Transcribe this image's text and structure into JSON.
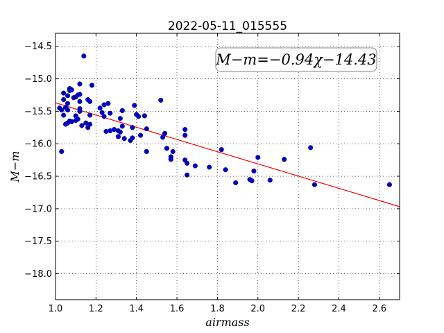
{
  "chart_data": {
    "type": "scatter",
    "title": "2022-05-11_015555",
    "xlabel": "airmass",
    "ylabel": "M−m",
    "xlim": [
      1.0,
      2.7
    ],
    "ylim": [
      -18.4,
      -14.3
    ],
    "x_ticks": [
      1.0,
      1.2,
      1.4,
      1.6,
      1.8,
      2.0,
      2.2,
      2.4,
      2.6
    ],
    "x_tick_labels": [
      "1.0",
      "1.2",
      "1.4",
      "1.6",
      "1.8",
      "2.0",
      "2.2",
      "2.4",
      "2.6"
    ],
    "y_ticks": [
      -14.5,
      -15.0,
      -15.5,
      -16.0,
      -16.5,
      -17.0,
      -17.5,
      -18.0
    ],
    "y_tick_labels": [
      "−14.5",
      "−15.0",
      "−15.5",
      "−16.0",
      "−16.5",
      "−17.0",
      "−17.5",
      "−18.0"
    ],
    "y_inverted": true,
    "grid": true,
    "annotation": "M−m=−0.94χ−14.43",
    "fit_line": {
      "slope": -0.94,
      "intercept": -14.43,
      "color": "#ff0000"
    },
    "marker_color": "#0000cc",
    "points": [
      [
        1.02,
        -15.45
      ],
      [
        1.03,
        -15.48
      ],
      [
        1.03,
        -16.12
      ],
      [
        1.04,
        -15.32
      ],
      [
        1.04,
        -15.22
      ],
      [
        1.04,
        -15.56
      ],
      [
        1.05,
        -15.44
      ],
      [
        1.05,
        -15.7
      ],
      [
        1.06,
        -15.38
      ],
      [
        1.06,
        -15.26
      ],
      [
        1.06,
        -15.48
      ],
      [
        1.06,
        -15.68
      ],
      [
        1.07,
        -15.15
      ],
      [
        1.07,
        -15.18
      ],
      [
        1.07,
        -15.65
      ],
      [
        1.08,
        -15.17
      ],
      [
        1.08,
        -15.66
      ],
      [
        1.09,
        -15.29
      ],
      [
        1.1,
        -15.28
      ],
      [
        1.1,
        -15.64
      ],
      [
        1.1,
        -15.57
      ],
      [
        1.11,
        -15.25
      ],
      [
        1.11,
        -15.62
      ],
      [
        1.12,
        -15.08
      ],
      [
        1.12,
        -15.24
      ],
      [
        1.12,
        -15.46
      ],
      [
        1.12,
        -15.5
      ],
      [
        1.12,
        -15.35
      ],
      [
        1.13,
        -15.72
      ],
      [
        1.14,
        -14.65
      ],
      [
        1.15,
        -15.68
      ],
      [
        1.16,
        -15.32
      ],
      [
        1.16,
        -15.75
      ],
      [
        1.17,
        -15.35
      ],
      [
        1.17,
        -15.7
      ],
      [
        1.17,
        -15.56
      ],
      [
        1.18,
        -15.1
      ],
      [
        1.22,
        -15.45
      ],
      [
        1.23,
        -15.52
      ],
      [
        1.24,
        -15.4
      ],
      [
        1.24,
        -15.58
      ],
      [
        1.25,
        -15.81
      ],
      [
        1.26,
        -15.38
      ],
      [
        1.27,
        -15.8
      ],
      [
        1.27,
        -15.53
      ],
      [
        1.29,
        -15.78
      ],
      [
        1.31,
        -15.8
      ],
      [
        1.31,
        -15.89
      ],
      [
        1.32,
        -15.82
      ],
      [
        1.32,
        -15.61
      ],
      [
        1.33,
        -15.49
      ],
      [
        1.33,
        -15.73
      ],
      [
        1.34,
        -15.92
      ],
      [
        1.37,
        -15.95
      ],
      [
        1.38,
        -15.75
      ],
      [
        1.38,
        -15.91
      ],
      [
        1.39,
        -15.41
      ],
      [
        1.4,
        -15.55
      ],
      [
        1.41,
        -15.58
      ],
      [
        1.42,
        -15.87
      ],
      [
        1.44,
        -15.57
      ],
      [
        1.45,
        -15.77
      ],
      [
        1.45,
        -16.12
      ],
      [
        1.52,
        -15.33
      ],
      [
        1.53,
        -15.9
      ],
      [
        1.54,
        -15.84
      ],
      [
        1.55,
        -16.07
      ],
      [
        1.57,
        -16.2
      ],
      [
        1.57,
        -16.24
      ],
      [
        1.58,
        -16.12
      ],
      [
        1.64,
        -15.78
      ],
      [
        1.64,
        -15.87
      ],
      [
        1.64,
        -16.25
      ],
      [
        1.65,
        -16.3
      ],
      [
        1.65,
        -16.48
      ],
      [
        1.69,
        -16.34
      ],
      [
        1.76,
        -16.36
      ],
      [
        1.82,
        -16.09
      ],
      [
        1.84,
        -16.4
      ],
      [
        1.89,
        -16.6
      ],
      [
        1.96,
        -16.55
      ],
      [
        1.97,
        -16.57
      ],
      [
        1.98,
        -16.42
      ],
      [
        2.0,
        -16.21
      ],
      [
        2.06,
        -16.56
      ],
      [
        2.13,
        -16.24
      ],
      [
        2.26,
        -16.06
      ],
      [
        2.28,
        -16.63
      ],
      [
        2.65,
        -16.63
      ]
    ]
  }
}
